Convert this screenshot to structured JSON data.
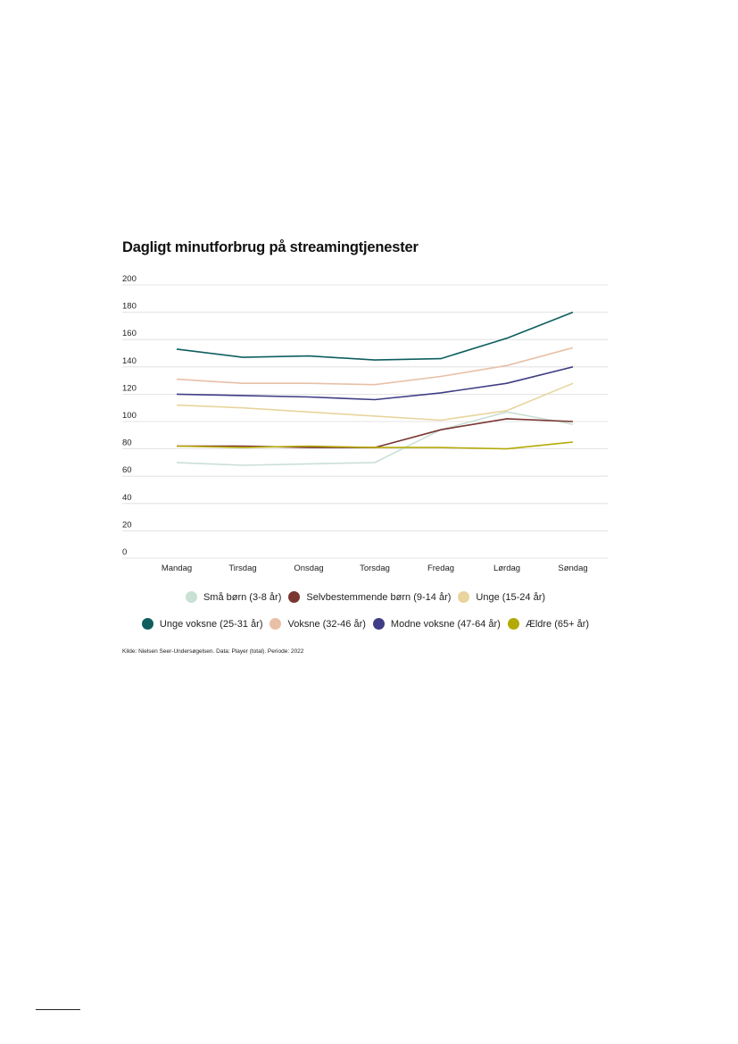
{
  "chart_data": {
    "type": "line",
    "title": "Dagligt minutforbrug på streamingtjenester",
    "xlabel": "",
    "ylabel": "",
    "ylim": [
      0,
      200
    ],
    "yticks": [
      "0",
      "20",
      "40",
      "60",
      "80",
      "100",
      "120",
      "140",
      "160",
      "180",
      "200"
    ],
    "grid": true,
    "legend_position": "bottom",
    "categories": [
      "Mandag",
      "Tirsdag",
      "Onsdag",
      "Torsdag",
      "Fredag",
      "Lørdag",
      "Søndag"
    ],
    "series": [
      {
        "name": "Små børn (3-8 år)",
        "color": "#c9e0d4",
        "values": [
          70,
          68,
          69,
          70,
          94,
          107,
          98
        ]
      },
      {
        "name": "Selvbestemmende børn (9-14 år)",
        "color": "#7a3631",
        "values": [
          82,
          82,
          81,
          81,
          94,
          102,
          100
        ]
      },
      {
        "name": "Unge (15-24 år)",
        "color": "#e8d49c",
        "values": [
          112,
          110,
          107,
          104,
          101,
          108,
          128
        ]
      },
      {
        "name": "Unge voksne (25-31 år)",
        "color": "#0e5e5f",
        "values": [
          153,
          147,
          148,
          145,
          146,
          161,
          180
        ]
      },
      {
        "name": "Voksne (32-46 år)",
        "color": "#e8c0a6",
        "values": [
          131,
          128,
          128,
          127,
          133,
          141,
          154
        ]
      },
      {
        "name": "Modne voksne (47-64 år)",
        "color": "#3f3d85",
        "values": [
          120,
          119,
          118,
          116,
          121,
          128,
          140
        ]
      },
      {
        "name": "Ældre (65+ år)",
        "color": "#b4aa07",
        "values": [
          82,
          81,
          82,
          81,
          81,
          80,
          85
        ]
      }
    ]
  },
  "source_note": "Kilde: Nielsen Seer-Undersøgelsen. Data: Player (total). Periode: 2022"
}
